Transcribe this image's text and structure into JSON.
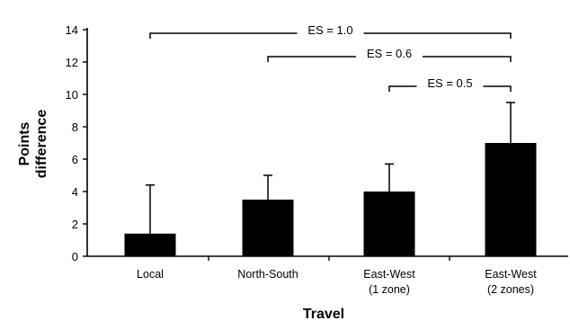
{
  "chart_data": {
    "type": "bar",
    "title": "",
    "xlabel": "Travel",
    "ylabel_lines": [
      "Points",
      "difference"
    ],
    "ylim": [
      0,
      14
    ],
    "yticks": [
      0,
      2,
      4,
      6,
      8,
      10,
      12,
      14
    ],
    "grid": false,
    "categories": [
      [
        "Local"
      ],
      [
        "North-South"
      ],
      [
        "East-West",
        "(1 zone)"
      ],
      [
        "East-West",
        "(2 zones)"
      ]
    ],
    "values": [
      1.4,
      3.5,
      4.0,
      7.0
    ],
    "error_upper": [
      4.4,
      5.0,
      5.7,
      9.5
    ],
    "bar_color": "#000000",
    "annotations": [
      {
        "label": "ES = 1.0",
        "from": 0,
        "to": 3
      },
      {
        "label": "ES = 0.6",
        "from": 1,
        "to": 3
      },
      {
        "label": "ES = 0.5",
        "from": 2,
        "to": 3
      }
    ]
  }
}
